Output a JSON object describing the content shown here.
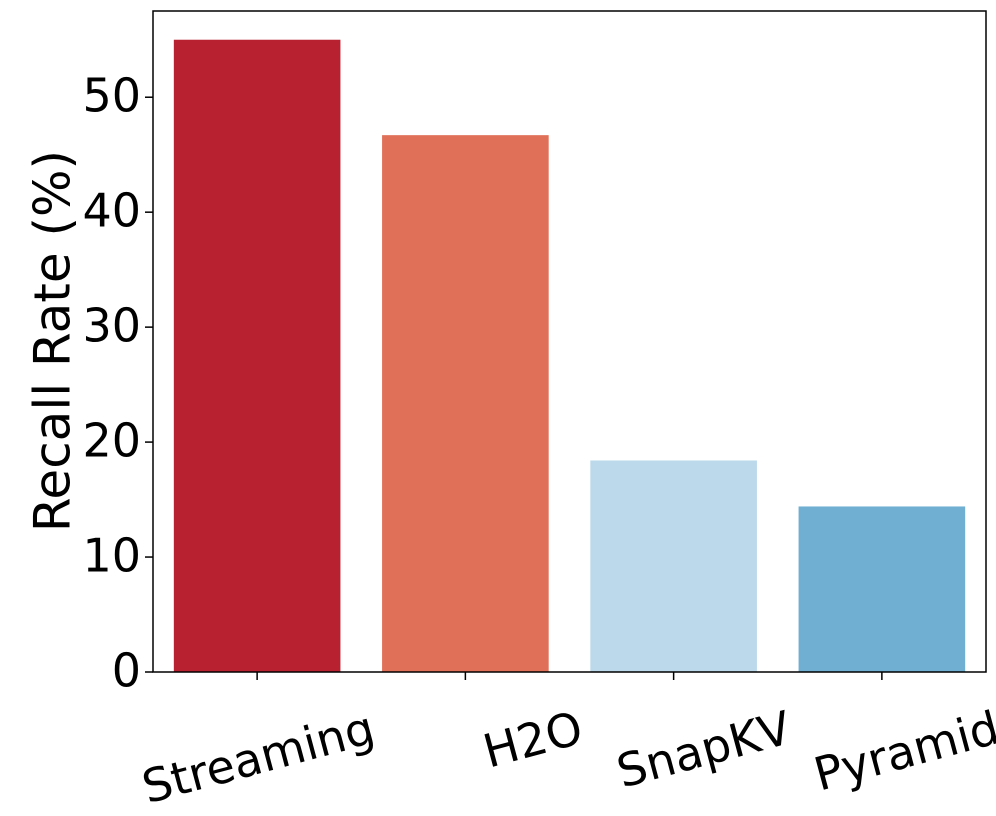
{
  "chart_data": {
    "type": "bar",
    "title": "",
    "xlabel": "",
    "ylabel": "Recall Rate (%)",
    "categories": [
      "Streaming",
      "H2O",
      "SnapKV",
      "Pyramid"
    ],
    "values": [
      55.0,
      46.7,
      18.4,
      14.4
    ],
    "colors": [
      "#b82230",
      "#e07058",
      "#bbd9ea",
      "#70aed2"
    ],
    "ylim": [
      0,
      57.5
    ],
    "yticks": [
      0,
      10,
      20,
      30,
      40,
      50
    ],
    "grid": false,
    "legend": "none"
  }
}
